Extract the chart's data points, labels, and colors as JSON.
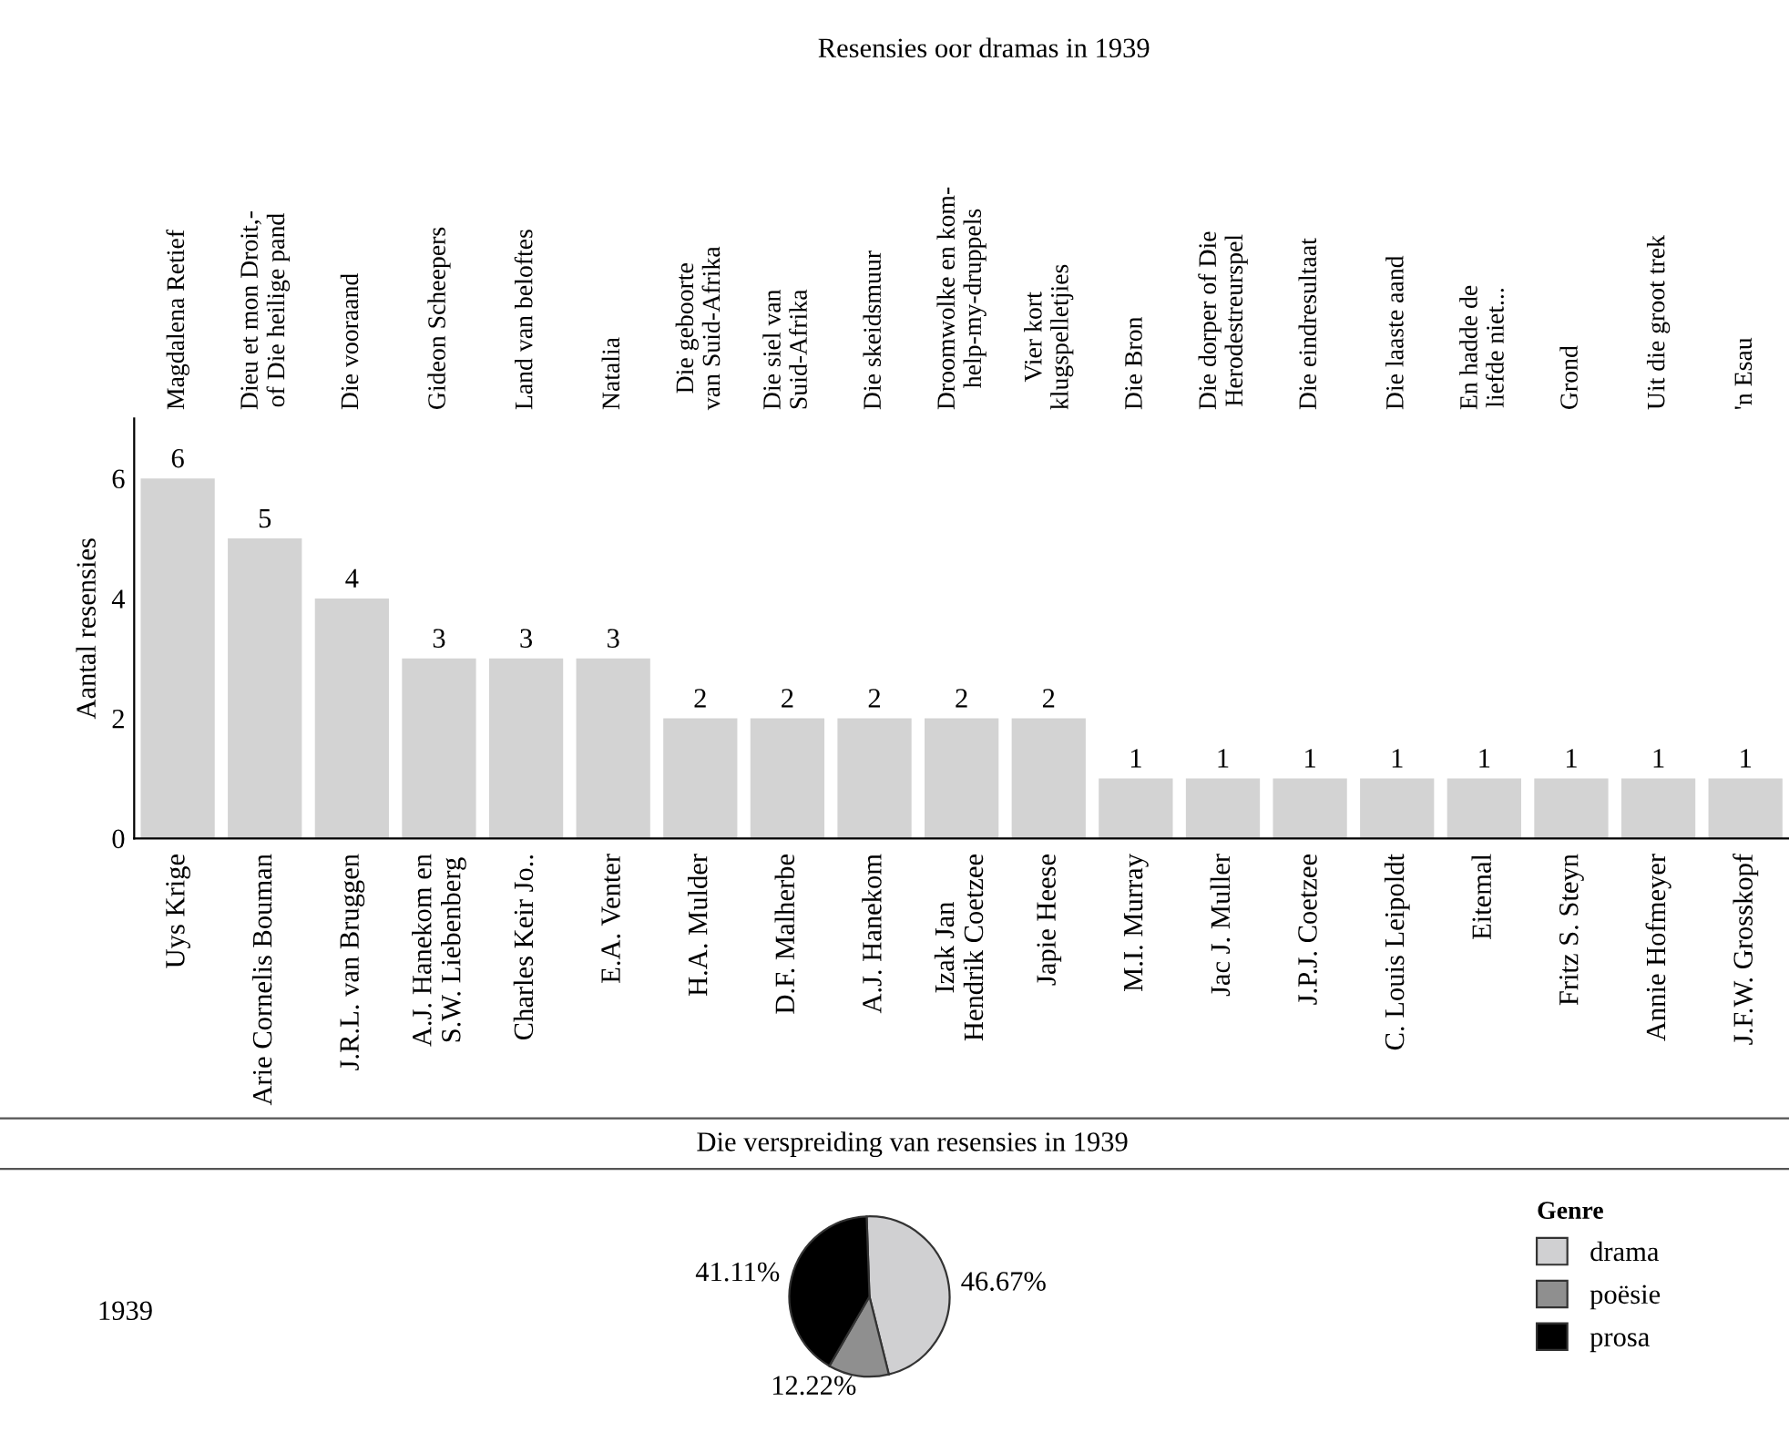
{
  "chart_data": [
    {
      "type": "bar",
      "title": "Resensies oor dramas in 1939",
      "ylabel": "Aantal resensies",
      "categories": [
        "Uys Krige",
        "Arie Cornelis Bouman",
        "J.R.L. van Bruggen",
        "A.J. Hanekom en S.W. Liebenberg",
        "Charles Keir Jo..",
        "E.A. Venter",
        "H.A. Mulder",
        "D.F. Malherbe",
        "A.J. Hanekom",
        "Izak Jan Hendrik Coetzee",
        "Japie Heese",
        "M.I. Murray",
        "Jac J. Muller",
        "J.P.J. Coetzee",
        "C. Louis Leipoldt",
        "Eitemal",
        "Fritz S. Steyn",
        "Annie Hofmeyer",
        "J.F.W. Grosskopf"
      ],
      "values": [
        6,
        5,
        4,
        3,
        3,
        3,
        2,
        2,
        2,
        2,
        2,
        1,
        1,
        1,
        1,
        1,
        1,
        1,
        1
      ],
      "color": "#d3d3d3",
      "data_labels": true,
      "ylim": [
        0,
        7
      ],
      "yticks": [
        0,
        2,
        4,
        6
      ],
      "grid": false,
      "legend": false,
      "annotations": [
        "Magdalena Retief",
        "Dieu et mon Droit,-of Die heilige pand",
        "Die vooraand",
        "Gideon Scheepers",
        "Land van beloftes",
        "Natalia",
        "Die geboorte van Suid-Afrika",
        "Die siel van Suid-Afrika",
        "Die skeidsmuur",
        "Droomwolke en kom-help-my-druppels",
        "Vier kort klugspelletjies",
        "Die Bron",
        "Die dorper of Die Herodestreurspel",
        "Die eindresultaat",
        "Die laaste aand",
        "En hadde de liefde niet...",
        "Grond",
        "Uit die groot trek",
        "'n Esau"
      ]
    },
    {
      "type": "pie",
      "title": "Die verspreiding van resensies in 1939",
      "categories": [
        "drama",
        "poësie",
        "prosa"
      ],
      "values": [
        46.67,
        12.22,
        41.11
      ],
      "colors": [
        "#d0d0d2",
        "#8f8f8f",
        "#000000"
      ],
      "value_labels": [
        "46.67%",
        "12.22%",
        "41.11%"
      ],
      "legend": "right",
      "legend_title": "Genre",
      "annotations": [
        "1939"
      ]
    }
  ]
}
